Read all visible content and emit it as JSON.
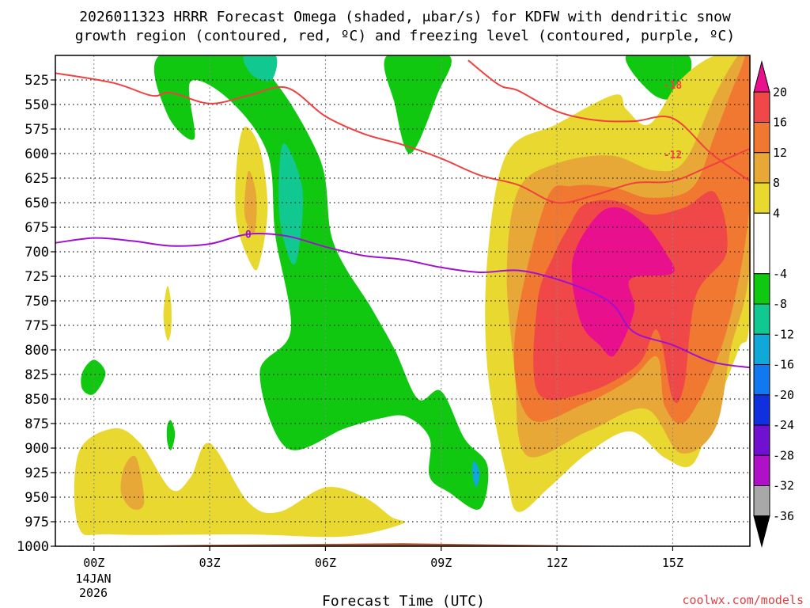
{
  "chart_data": {
    "type": "heatmap",
    "title_line1": "2026011323 HRRR Forecast Omega (shaded, μbar/s) for KDFW with dendritic snow",
    "title_line2": "growth region (contoured, red, ºC) and freezing level (contoured, purple, ºC)",
    "xlabel": "Forecast Time (UTC)",
    "x_ticks": [
      "00Z",
      "03Z",
      "06Z",
      "09Z",
      "12Z",
      "15Z"
    ],
    "x_tick_hours": [
      0,
      3,
      6,
      9,
      12,
      15
    ],
    "x_range_hours": [
      -1,
      17
    ],
    "date_day": "14JAN",
    "date_year": "2026",
    "y_ticks": [
      "525",
      "550",
      "575",
      "600",
      "625",
      "650",
      "675",
      "700",
      "725",
      "750",
      "775",
      "800",
      "825",
      "850",
      "875",
      "900",
      "925",
      "950",
      "975",
      "1000"
    ],
    "y_tick_values": [
      525,
      550,
      575,
      600,
      625,
      650,
      675,
      700,
      725,
      750,
      775,
      800,
      825,
      850,
      875,
      900,
      925,
      950,
      975,
      1000
    ],
    "y_range_hPa": [
      500,
      1000
    ],
    "y_axis_inverted": true,
    "colorbar": {
      "labels": [
        "20",
        "16",
        "12",
        "8",
        "4",
        "-4",
        "-8",
        "-12",
        "-16",
        "-20",
        "-24",
        "-28",
        "-32",
        "-36"
      ],
      "label_values": [
        20,
        16,
        12,
        8,
        4,
        -4,
        -8,
        -12,
        -16,
        -20,
        -24,
        -28,
        -32,
        -36
      ],
      "bins": [
        {
          "color": "#e8108c",
          "range": [
            20,
            24
          ]
        },
        {
          "color": "#f04848",
          "range": [
            16,
            20
          ]
        },
        {
          "color": "#f07830",
          "range": [
            12,
            16
          ]
        },
        {
          "color": "#e8a838",
          "range": [
            8,
            12
          ]
        },
        {
          "color": "#e8d830",
          "range": [
            4,
            8
          ]
        },
        {
          "color": "#ffffff",
          "range": [
            -4,
            4
          ]
        },
        {
          "color": "#10c810",
          "range": [
            -8,
            -4
          ]
        },
        {
          "color": "#10c890",
          "range": [
            -12,
            -8
          ]
        },
        {
          "color": "#10a8d8",
          "range": [
            -16,
            -12
          ]
        },
        {
          "color": "#1078f0",
          "range": [
            -20,
            -16
          ]
        },
        {
          "color": "#1030e0",
          "range": [
            -24,
            -20
          ]
        },
        {
          "color": "#7010d0",
          "range": [
            -28,
            -24
          ]
        },
        {
          "color": "#b010c8",
          "range": [
            -32,
            -28
          ]
        },
        {
          "color": "#a8a8a8",
          "range": [
            -36,
            -32
          ]
        }
      ]
    },
    "contours": [
      {
        "name": "dgz -18 C",
        "color": "#f04040",
        "label": "-18",
        "label_at": [
          15,
          530
        ],
        "points": [
          [
            -1,
            518
          ],
          [
            0.5,
            528
          ],
          [
            1.5,
            541
          ],
          [
            2,
            538
          ],
          [
            3,
            549
          ],
          [
            4,
            541
          ],
          [
            5,
            533
          ],
          [
            6,
            562
          ],
          [
            7,
            580
          ],
          [
            8,
            591
          ],
          [
            9,
            605
          ],
          [
            10,
            622
          ],
          [
            11,
            632
          ],
          [
            12,
            650
          ],
          [
            13,
            642
          ],
          [
            14,
            630
          ],
          [
            15,
            628
          ],
          [
            16,
            612
          ],
          [
            17,
            595
          ]
        ]
      },
      {
        "name": "dgz -12 C",
        "color": "#f04040",
        "label": "-12",
        "label_at": [
          15,
          601
        ],
        "points": [
          [
            9.7,
            505
          ],
          [
            10.5,
            530
          ],
          [
            11,
            536
          ],
          [
            12,
            557
          ],
          [
            13,
            566
          ],
          [
            14,
            567
          ],
          [
            15,
            564
          ],
          [
            16,
            600
          ],
          [
            17,
            628
          ]
        ]
      },
      {
        "name": "freezing level 0 C",
        "color": "#a010d0",
        "label": "0",
        "label_at": [
          4,
          682
        ],
        "points": [
          [
            -1,
            691
          ],
          [
            0,
            686
          ],
          [
            1,
            689
          ],
          [
            2,
            694
          ],
          [
            3,
            692
          ],
          [
            4,
            682
          ],
          [
            5,
            684
          ],
          [
            6,
            695
          ],
          [
            7,
            704
          ],
          [
            8,
            708
          ],
          [
            9,
            716
          ],
          [
            10,
            721
          ],
          [
            11,
            719
          ],
          [
            12,
            728
          ],
          [
            13,
            743
          ],
          [
            13.5,
            756
          ],
          [
            14,
            782
          ],
          [
            15,
            795
          ],
          [
            16,
            812
          ],
          [
            17,
            818
          ]
        ]
      }
    ],
    "omega_regions": [
      {
        "level": -4,
        "color": "#10c810",
        "description": "rising motion band 01Z-06Z",
        "points": [
          [
            1.7,
            500
          ],
          [
            4,
            500
          ],
          [
            5.8,
            600
          ],
          [
            6.2,
            690
          ],
          [
            7.2,
            758
          ],
          [
            7.8,
            800
          ],
          [
            8.4,
            850
          ],
          [
            9,
            842
          ],
          [
            9.6,
            890
          ],
          [
            10.2,
            918
          ],
          [
            10,
            962
          ],
          [
            9.2,
            945
          ],
          [
            8.7,
            929
          ],
          [
            8.7,
            890
          ],
          [
            8.1,
            868
          ],
          [
            7.4,
            870
          ],
          [
            6.5,
            880
          ],
          [
            5,
            900
          ],
          [
            4.3,
            823
          ],
          [
            5.1,
            780
          ],
          [
            4.7,
            683
          ],
          [
            4.5,
            600
          ],
          [
            3.5,
            545
          ],
          [
            2.5,
            527
          ],
          [
            2.6,
            585
          ],
          [
            1.9,
            560
          ]
        ]
      },
      {
        "level": -4,
        "color": "#10c810",
        "description": "green band 08Z-10Z",
        "points": [
          [
            7.6,
            500
          ],
          [
            9.2,
            500
          ],
          [
            8.9,
            540
          ],
          [
            8.2,
            600
          ],
          [
            7.8,
            550
          ]
        ]
      },
      {
        "level": -4,
        "color": "#10c810",
        "description": "green near 15Z top",
        "points": [
          [
            13.8,
            500
          ],
          [
            15.4,
            500
          ],
          [
            15.2,
            540
          ],
          [
            14.5,
            540
          ]
        ]
      },
      {
        "level": -8,
        "color": "#10c890",
        "description": "column near 05Z",
        "points": [
          [
            4.9,
            590
          ],
          [
            5.4,
            635
          ],
          [
            5.3,
            700
          ],
          [
            5.1,
            710
          ],
          [
            4.8,
            660
          ]
        ]
      },
      {
        "level": -8,
        "color": "#10c890",
        "description": "top near 04Z",
        "points": [
          [
            3.9,
            500
          ],
          [
            4.7,
            500
          ],
          [
            4.6,
            525
          ],
          [
            4.1,
            520
          ]
        ]
      },
      {
        "level": 4,
        "color": "#e8d830",
        "description": "major warm area 10Z-17Z",
        "points": [
          [
            10.7,
            600
          ],
          [
            12,
            570
          ],
          [
            13.5,
            540
          ],
          [
            13.8,
            555
          ],
          [
            14.4,
            570
          ],
          [
            15.2,
            525
          ],
          [
            16.1,
            500
          ],
          [
            17,
            500
          ],
          [
            17,
            760
          ],
          [
            16.7,
            800
          ],
          [
            16,
            870
          ],
          [
            15.5,
            917
          ],
          [
            14.8,
            910
          ],
          [
            13.9,
            883
          ],
          [
            12.8,
            905
          ],
          [
            11.8,
            940
          ],
          [
            11,
            965
          ],
          [
            10.7,
            930
          ],
          [
            10.2,
            820
          ],
          [
            10.2,
            705
          ]
        ]
      },
      {
        "level": 8,
        "color": "#e8a838",
        "description": "inner band 10Z-17Z",
        "points": [
          [
            11,
            637
          ],
          [
            12,
            610
          ],
          [
            13.4,
            602
          ],
          [
            14.5,
            617
          ],
          [
            15.3,
            608
          ],
          [
            16.1,
            540
          ],
          [
            16.7,
            500
          ],
          [
            17,
            500
          ],
          [
            17,
            710
          ],
          [
            16.5,
            800
          ],
          [
            16.1,
            880
          ],
          [
            15.2,
            905
          ],
          [
            14.3,
            860
          ],
          [
            12.8,
            883
          ],
          [
            11.2,
            907
          ],
          [
            10.9,
            820
          ],
          [
            10.7,
            720
          ]
        ]
      },
      {
        "level": 12,
        "color": "#f07830",
        "description": "orange core 12Z-17Z",
        "points": [
          [
            11.7,
            650
          ],
          [
            12.4,
            633
          ],
          [
            13.5,
            635
          ],
          [
            14.4,
            645
          ],
          [
            15.5,
            635
          ],
          [
            16.1,
            580
          ],
          [
            16.7,
            520
          ],
          [
            17,
            505
          ],
          [
            17,
            650
          ],
          [
            16.4,
            780
          ],
          [
            15.4,
            870
          ],
          [
            14.8,
            858
          ],
          [
            14.6,
            807
          ],
          [
            13.9,
            830
          ],
          [
            12.7,
            855
          ],
          [
            11.3,
            870
          ],
          [
            10.9,
            790
          ]
        ]
      },
      {
        "level": 16,
        "color": "#f04848",
        "description": "red core 12Z-16Z",
        "points": [
          [
            12.3,
            675
          ],
          [
            12.7,
            652
          ],
          [
            13.5,
            648
          ],
          [
            14.4,
            662
          ],
          [
            15.3,
            655
          ],
          [
            16.1,
            640
          ],
          [
            16.4,
            700
          ],
          [
            15.6,
            745
          ],
          [
            15.3,
            835
          ],
          [
            15,
            850
          ],
          [
            14.6,
            780
          ],
          [
            14.1,
            815
          ],
          [
            12.8,
            843
          ],
          [
            11.5,
            843
          ],
          [
            11.5,
            750
          ],
          [
            11.9,
            705
          ]
        ]
      },
      {
        "level": 20,
        "color": "#e8108c",
        "description": "magenta maximum 13Z-15Z",
        "points": [
          [
            13,
            665
          ],
          [
            13.6,
            655
          ],
          [
            14.3,
            673
          ],
          [
            14.8,
            700
          ],
          [
            15,
            722
          ],
          [
            13.9,
            728
          ],
          [
            14,
            760
          ],
          [
            13.5,
            805
          ],
          [
            13.1,
            795
          ],
          [
            12.6,
            770
          ],
          [
            12.4,
            710
          ]
        ]
      },
      {
        "level": 4,
        "color": "#e8d830",
        "description": "yellow lobe near 04Z",
        "points": [
          [
            3.9,
            573
          ],
          [
            4.3,
            595
          ],
          [
            4.5,
            655
          ],
          [
            4.3,
            710
          ],
          [
            4.1,
            715
          ],
          [
            3.7,
            670
          ],
          [
            3.7,
            610
          ]
        ]
      },
      {
        "level": 8,
        "color": "#e8a838",
        "description": "orange lobe near 04Z",
        "points": [
          [
            4,
            618
          ],
          [
            4.2,
            640
          ],
          [
            4.2,
            672
          ],
          [
            4.1,
            681
          ],
          [
            3.9,
            660
          ]
        ]
      },
      {
        "level": 4,
        "color": "#e8d830",
        "description": "low-level warm 00Z-08Z",
        "points": [
          [
            -0.4,
            905
          ],
          [
            0.5,
            880
          ],
          [
            1.2,
            895
          ],
          [
            2,
            942
          ],
          [
            2.5,
            930
          ],
          [
            3,
            895
          ],
          [
            4,
            955
          ],
          [
            4.8,
            965
          ],
          [
            6,
            940
          ],
          [
            7,
            950
          ],
          [
            7.7,
            970
          ],
          [
            8,
            977
          ],
          [
            6.5,
            990
          ],
          [
            4,
            988
          ],
          [
            0.5,
            988
          ],
          [
            -0.4,
            980
          ]
        ]
      },
      {
        "level": 8,
        "color": "#e8a838",
        "description": "orange blob near 01Z",
        "points": [
          [
            0.8,
            918
          ],
          [
            1.1,
            910
          ],
          [
            1.3,
            955
          ],
          [
            1,
            962
          ],
          [
            0.7,
            945
          ]
        ]
      },
      {
        "level": 4,
        "color": "#e8d830",
        "description": "thin yellow near 02Z",
        "points": [
          [
            1.9,
            735
          ],
          [
            2,
            752
          ],
          [
            2,
            780
          ],
          [
            1.9,
            790
          ],
          [
            1.8,
            765
          ]
        ]
      },
      {
        "level": -4,
        "color": "#10c810",
        "description": "small green near 00Z",
        "points": [
          [
            -0.3,
            823
          ],
          [
            0,
            810
          ],
          [
            0.3,
            824
          ],
          [
            0,
            845
          ],
          [
            -0.3,
            840
          ]
        ]
      },
      {
        "level": -4,
        "color": "#10c810",
        "description": "small green near 02Z",
        "points": [
          [
            1.9,
            877
          ],
          [
            2,
            872
          ],
          [
            2.1,
            886
          ],
          [
            2,
            902
          ],
          [
            1.9,
            894
          ]
        ]
      },
      {
        "level": -12,
        "color": "#10a8d8",
        "description": "small blob near 10Z",
        "points": [
          [
            9.8,
            925
          ],
          [
            9.85,
            913
          ],
          [
            10,
            925
          ],
          [
            9.9,
            940
          ]
        ]
      }
    ],
    "terrain_fill_color": "#a0522d"
  },
  "credit": "coolwx.com/models"
}
